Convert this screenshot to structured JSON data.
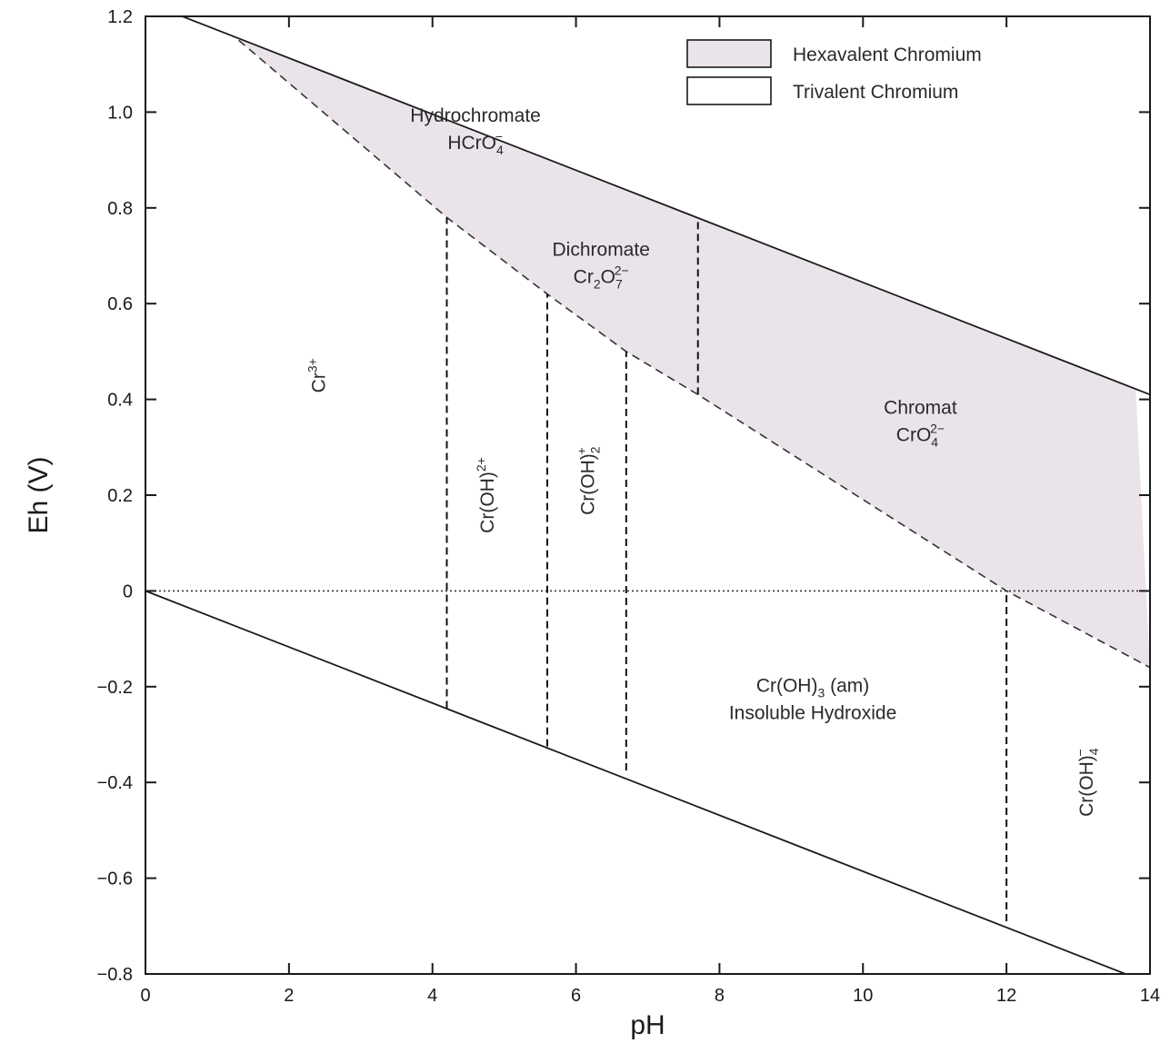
{
  "chart_data": {
    "type": "area",
    "title": "",
    "xlabel": "pH",
    "ylabel": "Eh (V)",
    "xlim": [
      0,
      14
    ],
    "ylim": [
      -0.8,
      1.2
    ],
    "xticks": [
      0,
      2,
      4,
      6,
      8,
      10,
      12,
      14
    ],
    "yticks": [
      1.2,
      1.0,
      0.8,
      0.6,
      0.4,
      0.2,
      0,
      -0.2,
      -0.4,
      -0.6,
      -0.8
    ],
    "ytick_labels": [
      "1.2",
      "1.0",
      "0.8",
      "0.6",
      "0.4",
      "0.2",
      "0",
      "−0.2",
      "−0.4",
      "−0.6",
      "−0.8"
    ],
    "grid": false,
    "legend": {
      "placement": "top-right",
      "entries": [
        {
          "label": "Hexavalent Chromium",
          "fill": "#ebe3ea"
        },
        {
          "label": "Trivalent Chromium",
          "fill": "#ffffff"
        }
      ]
    },
    "lines": {
      "upper_water": {
        "x": [
          0,
          14
        ],
        "y": [
          1.23,
          0.41
        ]
      },
      "lower_water": {
        "x": [
          0,
          14
        ],
        "y": [
          0.0,
          -0.82
        ]
      },
      "cr6_cr3_boundary": {
        "x": [
          1.3,
          4.2,
          5.6,
          6.7,
          7.7,
          12.0,
          14.0
        ],
        "y": [
          1.15,
          0.78,
          0.62,
          0.5,
          0.41,
          0.0,
          -0.16
        ]
      },
      "zero_line": {
        "y": 0
      }
    },
    "vertical_boundaries": [
      {
        "x": 4.2,
        "y": [
          -0.245,
          0.78
        ]
      },
      {
        "x": 5.6,
        "y": [
          -0.325,
          0.62
        ]
      },
      {
        "x": 6.7,
        "y": [
          -0.375,
          0.5
        ]
      },
      {
        "x": 7.7,
        "y": [
          0.41,
          0.78
        ]
      },
      {
        "x": 12.0,
        "y": [
          -0.69,
          0.0
        ]
      }
    ],
    "regions": [
      {
        "name": "hydrochromate",
        "lines": [
          "Hydrochromate"
        ],
        "species": {
          "base": "HCrO",
          "sub": "4",
          "sup": "−"
        },
        "x": 4.6,
        "y": 0.98
      },
      {
        "name": "dichromate",
        "lines": [
          "Dichromate"
        ],
        "species": {
          "base": "Cr",
          "sub": "2",
          "mid": "O",
          "sub2": "7",
          "sup": "2−"
        },
        "x": 6.35,
        "y": 0.7
      },
      {
        "name": "chromate",
        "lines": [
          "Chromat"
        ],
        "species": {
          "base": "CrO",
          "sub": "4",
          "sup": "2−"
        },
        "x": 10.8,
        "y": 0.37
      },
      {
        "name": "cr3",
        "species": {
          "base": "Cr",
          "sup": "3+"
        },
        "x": 2.5,
        "y": 0.45,
        "rotate": -90
      },
      {
        "name": "croh2plus",
        "species": {
          "base": "Cr(OH)",
          "sup": "2+"
        },
        "x": 4.85,
        "y": 0.2,
        "rotate": -90
      },
      {
        "name": "croh2",
        "species": {
          "base": "Cr(OH)",
          "sub": "2",
          "sup": "+"
        },
        "x": 6.25,
        "y": 0.23,
        "rotate": -90
      },
      {
        "name": "croh3",
        "lines": [
          "Insoluble Hydroxide"
        ],
        "species": {
          "base": "Cr(OH)",
          "sub": "3",
          "tail": " (am)"
        },
        "x": 9.3,
        "y": -0.215
      },
      {
        "name": "croh4",
        "species": {
          "base": "Cr(OH)",
          "sub": "4",
          "sup": "−"
        },
        "x": 13.2,
        "y": -0.4,
        "rotate": -90
      }
    ]
  }
}
